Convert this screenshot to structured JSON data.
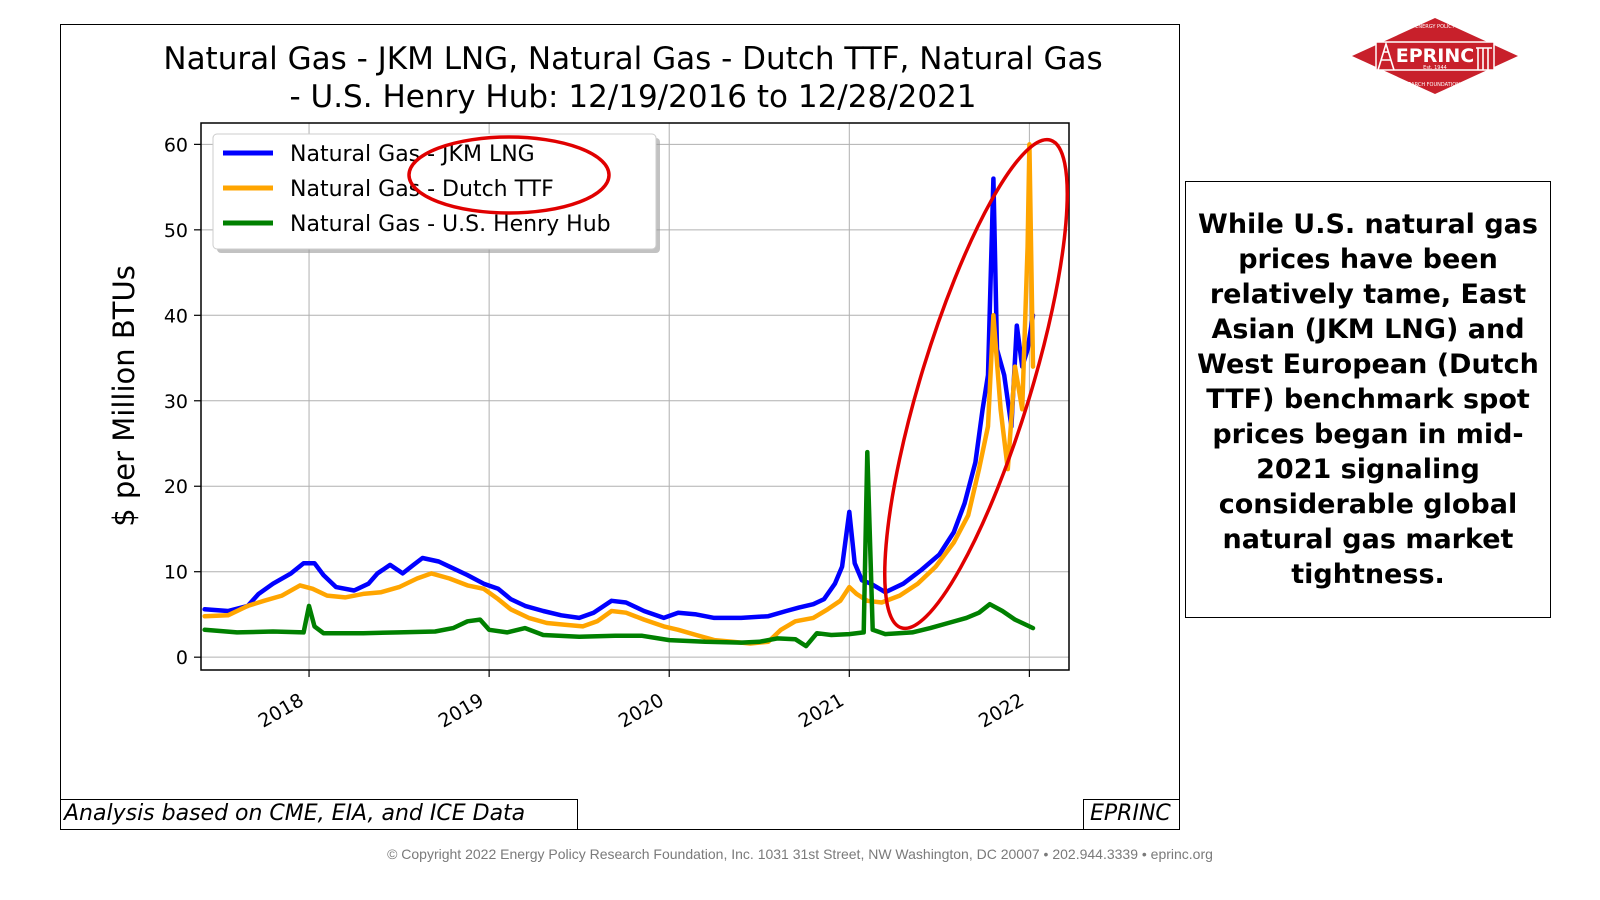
{
  "chart_data": {
    "type": "line",
    "title_line1": "Natural Gas - JKM LNG, Natural Gas - Dutch TTF, Natural Gas",
    "title_line2": "- U.S. Henry Hub: 12/19/2016 to 12/28/2021",
    "ylabel": "$ per Million BTUs",
    "xlabel": "",
    "xlim": [
      2017.4,
      2022.22
    ],
    "ylim": [
      -1.5,
      62.5
    ],
    "x_ticks": [
      2018,
      2019,
      2020,
      2021,
      2022
    ],
    "x_tick_labels": [
      "2018",
      "2019",
      "2020",
      "2021",
      "2022"
    ],
    "y_ticks": [
      0,
      10,
      20,
      30,
      40,
      50,
      60
    ],
    "y_tick_labels": [
      "0",
      "10",
      "20",
      "30",
      "40",
      "50",
      "60"
    ],
    "grid": true,
    "legend_position": "top-left",
    "series": [
      {
        "name": "Natural Gas - JKM LNG",
        "color": "#0000ff",
        "points": [
          [
            2017.42,
            5.6
          ],
          [
            2017.55,
            5.4
          ],
          [
            2017.66,
            6.0
          ],
          [
            2017.72,
            7.4
          ],
          [
            2017.8,
            8.6
          ],
          [
            2017.9,
            9.8
          ],
          [
            2017.97,
            11.0
          ],
          [
            2018.03,
            11.0
          ],
          [
            2018.08,
            9.6
          ],
          [
            2018.15,
            8.2
          ],
          [
            2018.25,
            7.8
          ],
          [
            2018.33,
            8.6
          ],
          [
            2018.38,
            9.8
          ],
          [
            2018.45,
            10.8
          ],
          [
            2018.52,
            9.8
          ],
          [
            2018.58,
            10.8
          ],
          [
            2018.63,
            11.6
          ],
          [
            2018.72,
            11.2
          ],
          [
            2018.8,
            10.4
          ],
          [
            2018.88,
            9.6
          ],
          [
            2018.97,
            8.6
          ],
          [
            2019.05,
            8.0
          ],
          [
            2019.12,
            6.8
          ],
          [
            2019.2,
            6.0
          ],
          [
            2019.3,
            5.4
          ],
          [
            2019.4,
            4.9
          ],
          [
            2019.5,
            4.6
          ],
          [
            2019.58,
            5.2
          ],
          [
            2019.68,
            6.6
          ],
          [
            2019.76,
            6.4
          ],
          [
            2019.86,
            5.4
          ],
          [
            2019.97,
            4.6
          ],
          [
            2020.05,
            5.2
          ],
          [
            2020.15,
            5.0
          ],
          [
            2020.25,
            4.6
          ],
          [
            2020.4,
            4.6
          ],
          [
            2020.55,
            4.8
          ],
          [
            2020.65,
            5.4
          ],
          [
            2020.72,
            5.8
          ],
          [
            2020.8,
            6.2
          ],
          [
            2020.86,
            6.8
          ],
          [
            2020.92,
            8.6
          ],
          [
            2020.96,
            10.6
          ],
          [
            2021.0,
            17.0
          ],
          [
            2021.03,
            11.0
          ],
          [
            2021.07,
            9.0
          ],
          [
            2021.12,
            8.6
          ],
          [
            2021.2,
            7.6
          ],
          [
            2021.3,
            8.6
          ],
          [
            2021.4,
            10.2
          ],
          [
            2021.5,
            12.0
          ],
          [
            2021.58,
            14.6
          ],
          [
            2021.64,
            18.0
          ],
          [
            2021.7,
            22.8
          ],
          [
            2021.74,
            29.0
          ],
          [
            2021.77,
            33.0
          ],
          [
            2021.8,
            56.0
          ],
          [
            2021.82,
            36.0
          ],
          [
            2021.86,
            33.0
          ],
          [
            2021.9,
            27.0
          ],
          [
            2021.93,
            38.8
          ],
          [
            2021.96,
            34.0
          ],
          [
            2021.99,
            36.0
          ],
          [
            2022.02,
            40.0
          ]
        ]
      },
      {
        "name": "Natural Gas - Dutch TTF",
        "color": "#ffa500",
        "points": [
          [
            2017.42,
            4.8
          ],
          [
            2017.55,
            4.9
          ],
          [
            2017.66,
            6.0
          ],
          [
            2017.75,
            6.6
          ],
          [
            2017.85,
            7.2
          ],
          [
            2017.95,
            8.4
          ],
          [
            2018.02,
            8.0
          ],
          [
            2018.1,
            7.2
          ],
          [
            2018.2,
            7.0
          ],
          [
            2018.3,
            7.4
          ],
          [
            2018.4,
            7.6
          ],
          [
            2018.5,
            8.2
          ],
          [
            2018.6,
            9.2
          ],
          [
            2018.68,
            9.8
          ],
          [
            2018.78,
            9.2
          ],
          [
            2018.88,
            8.4
          ],
          [
            2018.97,
            8.0
          ],
          [
            2019.05,
            6.8
          ],
          [
            2019.12,
            5.6
          ],
          [
            2019.22,
            4.6
          ],
          [
            2019.32,
            4.0
          ],
          [
            2019.42,
            3.8
          ],
          [
            2019.52,
            3.6
          ],
          [
            2019.6,
            4.2
          ],
          [
            2019.68,
            5.4
          ],
          [
            2019.76,
            5.2
          ],
          [
            2019.86,
            4.4
          ],
          [
            2019.97,
            3.6
          ],
          [
            2020.05,
            3.2
          ],
          [
            2020.15,
            2.6
          ],
          [
            2020.25,
            2.0
          ],
          [
            2020.35,
            1.8
          ],
          [
            2020.45,
            1.6
          ],
          [
            2020.55,
            1.8
          ],
          [
            2020.62,
            3.2
          ],
          [
            2020.7,
            4.2
          ],
          [
            2020.8,
            4.6
          ],
          [
            2020.88,
            5.6
          ],
          [
            2020.95,
            6.6
          ],
          [
            2021.0,
            8.2
          ],
          [
            2021.04,
            7.4
          ],
          [
            2021.1,
            6.6
          ],
          [
            2021.18,
            6.4
          ],
          [
            2021.28,
            7.2
          ],
          [
            2021.38,
            8.6
          ],
          [
            2021.48,
            10.6
          ],
          [
            2021.58,
            13.4
          ],
          [
            2021.66,
            16.6
          ],
          [
            2021.72,
            22.0
          ],
          [
            2021.77,
            27.0
          ],
          [
            2021.8,
            40.0
          ],
          [
            2021.84,
            29.0
          ],
          [
            2021.88,
            22.0
          ],
          [
            2021.92,
            34.0
          ],
          [
            2021.96,
            29.0
          ],
          [
            2021.99,
            48.0
          ],
          [
            2022.0,
            60.0
          ],
          [
            2022.02,
            34.0
          ]
        ]
      },
      {
        "name": "Natural Gas - U.S. Henry Hub",
        "color": "#008000",
        "points": [
          [
            2017.42,
            3.2
          ],
          [
            2017.6,
            2.9
          ],
          [
            2017.8,
            3.0
          ],
          [
            2017.97,
            2.9
          ],
          [
            2018.0,
            6.0
          ],
          [
            2018.03,
            3.6
          ],
          [
            2018.08,
            2.8
          ],
          [
            2018.3,
            2.8
          ],
          [
            2018.5,
            2.9
          ],
          [
            2018.7,
            3.0
          ],
          [
            2018.8,
            3.4
          ],
          [
            2018.88,
            4.2
          ],
          [
            2018.95,
            4.4
          ],
          [
            2019.0,
            3.2
          ],
          [
            2019.1,
            2.9
          ],
          [
            2019.2,
            3.4
          ],
          [
            2019.3,
            2.6
          ],
          [
            2019.5,
            2.4
          ],
          [
            2019.7,
            2.5
          ],
          [
            2019.85,
            2.5
          ],
          [
            2020.0,
            2.0
          ],
          [
            2020.2,
            1.8
          ],
          [
            2020.4,
            1.7
          ],
          [
            2020.5,
            1.8
          ],
          [
            2020.6,
            2.2
          ],
          [
            2020.7,
            2.1
          ],
          [
            2020.76,
            1.3
          ],
          [
            2020.82,
            2.8
          ],
          [
            2020.9,
            2.6
          ],
          [
            2021.0,
            2.7
          ],
          [
            2021.08,
            2.9
          ],
          [
            2021.1,
            24.0
          ],
          [
            2021.13,
            3.2
          ],
          [
            2021.2,
            2.7
          ],
          [
            2021.35,
            2.9
          ],
          [
            2021.45,
            3.4
          ],
          [
            2021.55,
            4.0
          ],
          [
            2021.65,
            4.6
          ],
          [
            2021.72,
            5.2
          ],
          [
            2021.78,
            6.2
          ],
          [
            2021.85,
            5.4
          ],
          [
            2021.92,
            4.4
          ],
          [
            2022.0,
            3.6
          ],
          [
            2022.02,
            3.4
          ]
        ]
      }
    ],
    "annotations": [
      "red ellipse around legend entries",
      "red ellipse around 2021 price spike"
    ]
  },
  "footer": {
    "source_note": "Analysis based on CME, EIA, and ICE Data",
    "brand_note": "EPRINC",
    "copyright": "© Copyright 2022 Energy Policy Research Foundation, Inc. 1031 31st Street, NW Washington, DC 20007 • 202.944.3339 • eprinc.org"
  },
  "callout": {
    "text": "While U.S. natural gas prices have been relatively tame, East Asian (JKM LNG) and West European (Dutch TTF) benchmark spot prices began in mid-2021 signaling considerable global natural gas market tightness."
  },
  "logo": {
    "name": "EPRINC",
    "top_text": "ENERGY POLICY",
    "sub_text": "Est. 1944",
    "bottom_text": "RESEARCH FOUNDATION INC.",
    "color": "#c8202b"
  },
  "colors": {
    "annotation": "#e00000",
    "grid": "#b0b0b0"
  }
}
